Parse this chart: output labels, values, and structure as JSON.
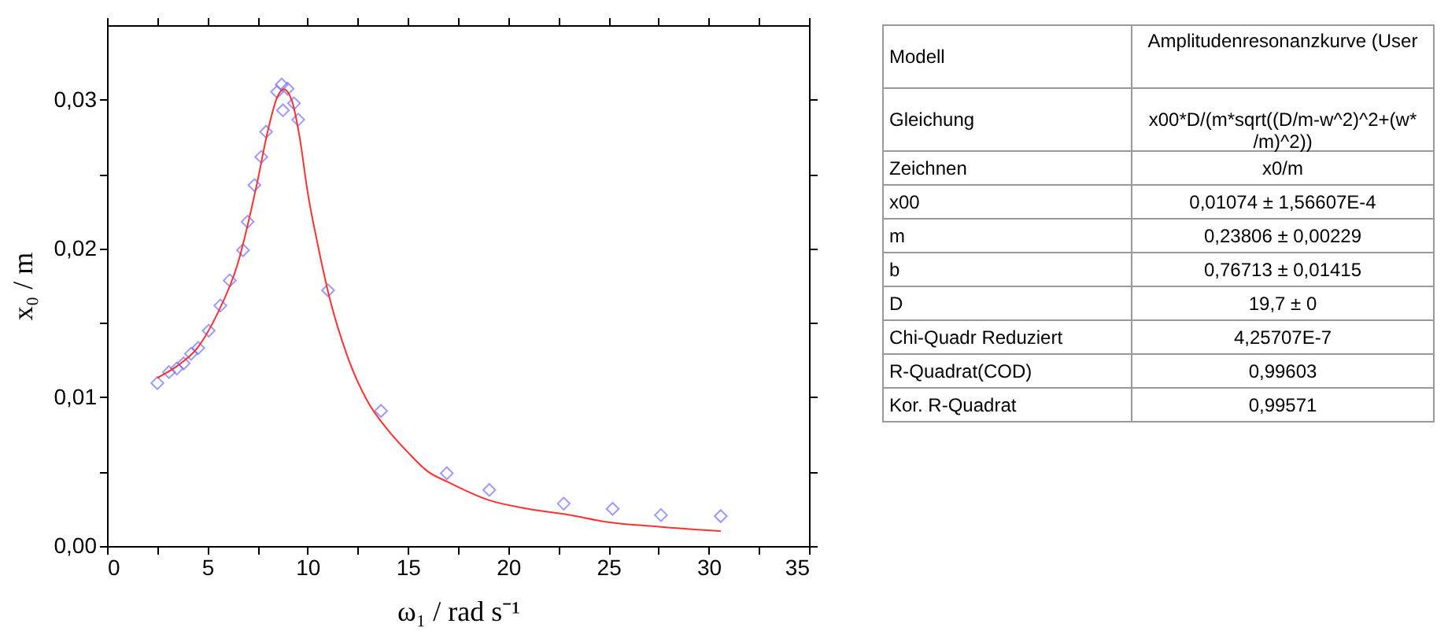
{
  "chart_data": [
    {
      "type": "scatter",
      "xlabel": "ω₁ / rad s⁻¹",
      "ylabel": "x₀ / m",
      "xlim": [
        0,
        35
      ],
      "xticks": [
        0,
        {
          "value": 2.5,
          "label": null
        },
        5,
        {
          "value": 7.5,
          "label": null
        },
        10,
        {
          "value": 12.5,
          "label": null
        },
        15,
        {
          "value": 17.5,
          "label": null
        },
        20,
        {
          "value": 22.5,
          "label": null
        },
        25,
        {
          "value": 27.5,
          "label": null
        },
        30,
        {
          "value": 32.5,
          "label": null
        },
        35
      ],
      "ylim": [
        0,
        0.035
      ],
      "yticks": [
        {
          "value": 0,
          "label": "0,00"
        },
        {
          "value": 0.005,
          "label": null
        },
        {
          "value": 0.01,
          "label": "0,01"
        },
        {
          "value": 0.015,
          "label": null
        },
        {
          "value": 0.02,
          "label": "0,02"
        },
        {
          "value": 0.025,
          "label": null
        },
        {
          "value": 0.03,
          "label": "0,03"
        }
      ],
      "grid": false,
      "series": [
        {
          "type": "scatter",
          "marker": "diamond",
          "color": "#7070ff",
          "x": [
            2.51,
            3.09,
            3.48,
            3.82,
            4.19,
            4.55,
            5.07,
            5.65,
            6.12,
            6.78,
            7.01,
            7.35,
            7.69,
            7.93,
            8.48,
            8.71,
            8.77,
            9.0,
            9.32,
            9.53,
            11.02,
            13.66,
            16.94,
            19.06,
            22.77,
            25.21,
            27.62,
            30.6
          ],
          "values": [
            0.01095,
            0.01169,
            0.01193,
            0.01228,
            0.01292,
            0.01331,
            0.01447,
            0.01616,
            0.01785,
            0.01988,
            0.02179,
            0.02425,
            0.02615,
            0.02784,
            0.03052,
            0.03101,
            0.02928,
            0.03073,
            0.02975,
            0.02865,
            0.01718,
            0.00908,
            0.00489,
            0.00377,
            0.00285,
            0.0025,
            0.00208,
            0.00201
          ]
        },
        {
          "type": "line",
          "line_style": "solid",
          "color": "#ff3030",
          "x": [
            2.5,
            3.5,
            4.5,
            5.5,
            6.5,
            7.5,
            8.0,
            8.5,
            8.8,
            9.2,
            9.6,
            10.0,
            10.5,
            11.0,
            12.0,
            13.0,
            14.0,
            15.0,
            16.0,
            17.0,
            19.0,
            21.0,
            23.0,
            25.0,
            27.5,
            30.6
          ],
          "values": [
            0.0113,
            0.0121,
            0.0133,
            0.0156,
            0.0189,
            0.0245,
            0.0278,
            0.0302,
            0.0307,
            0.03,
            0.0275,
            0.0238,
            0.0203,
            0.0172,
            0.0127,
            0.0097,
            0.0078,
            0.0063,
            0.005,
            0.0043,
            0.0031,
            0.0025,
            0.0021,
            0.0016,
            0.0013,
            0.001
          ]
        }
      ]
    },
    {
      "type": "other",
      "annotations": [
        "Modell",
        "Amplitudenresonanzkurve (User",
        "Gleichung",
        "x00*D/(m*sqrt((D/m-w^2)^2+(w*\n/m)^2))",
        "Zeichnen",
        "x0/m",
        "x00",
        "0,01074 ± 1,56607E-4",
        "m",
        "0,23806 ± 0,00229",
        "b",
        "0,76713 ± 0,01415",
        "D",
        "19,7 ± 0",
        "Chi-Quadr Reduziert",
        "4,25707E-7",
        "R-Quadrat(COD)",
        "0,99603",
        "Kor. R-Quadrat",
        "0,99571"
      ]
    }
  ]
}
